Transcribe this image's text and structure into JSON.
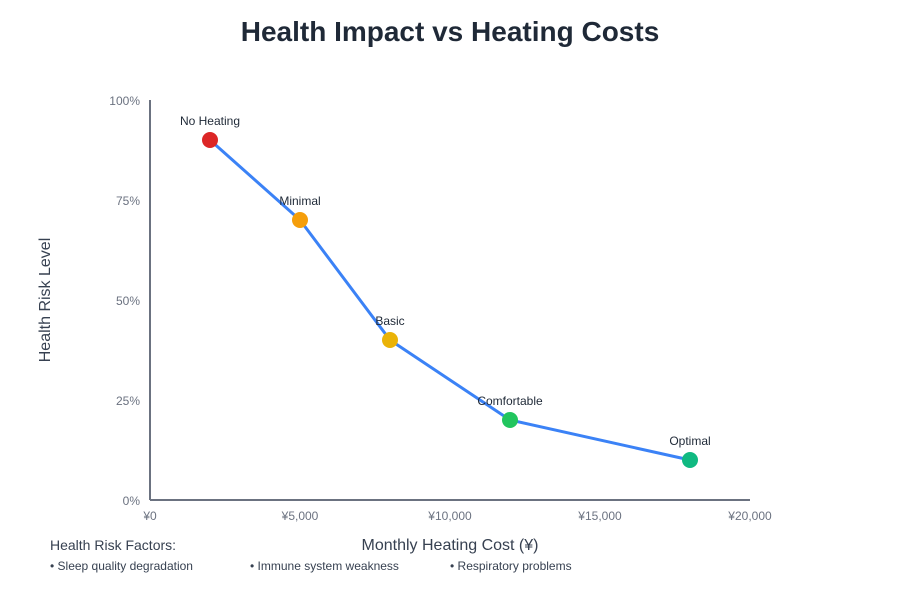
{
  "chart_data": {
    "type": "line",
    "title": "Health Impact vs Heating Costs",
    "xlabel": "Monthly Heating Cost (¥)",
    "ylabel": "Health Risk Level",
    "xlim": [
      0,
      20000
    ],
    "ylim": [
      0,
      100
    ],
    "x_ticks": [
      "¥0",
      "¥5,000",
      "¥10,000",
      "¥15,000",
      "¥20,000"
    ],
    "y_ticks": [
      "0%",
      "25%",
      "50%",
      "75%",
      "100%"
    ],
    "grid": false,
    "line_color": "#3b82f6",
    "points": [
      {
        "label": "No Heating",
        "x": 2000,
        "y": 90,
        "color": "#dc2626"
      },
      {
        "label": "Minimal",
        "x": 5000,
        "y": 70,
        "color": "#f59e0b"
      },
      {
        "label": "Basic",
        "x": 8000,
        "y": 40,
        "color": "#eab308"
      },
      {
        "label": "Comfortable",
        "x": 12000,
        "y": 20,
        "color": "#22c55e"
      },
      {
        "label": "Optimal",
        "x": 18000,
        "y": 10,
        "color": "#10b981"
      }
    ]
  },
  "factors": {
    "heading": "Health Risk Factors:",
    "items": [
      "• Sleep quality degradation",
      "• Immune system weakness",
      "• Respiratory problems"
    ]
  }
}
